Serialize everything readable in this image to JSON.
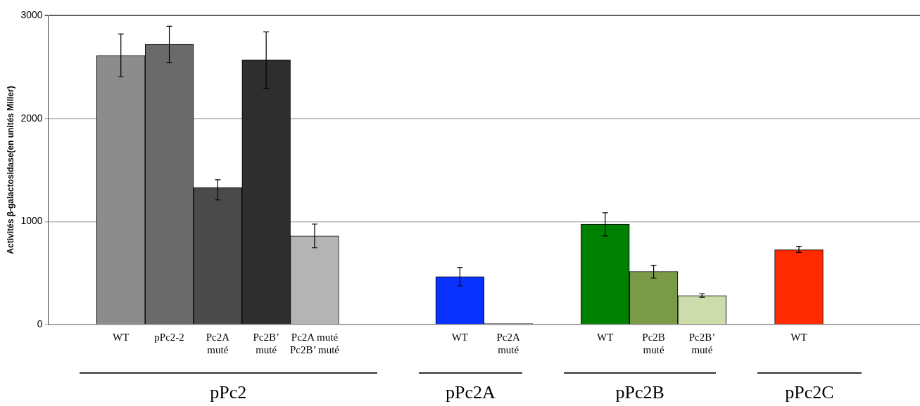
{
  "chart_data": {
    "type": "bar",
    "ylabel": "Activités β-galactosidase(en unités Miller)",
    "categories": [
      null,
      "WT",
      "pPc2-2",
      "Pc2A\nmuté",
      "Pc2B’\nmuté",
      "Pc2A muté\nPc2B’ muté",
      null,
      null,
      "WT",
      "Pc2A\nmuté",
      null,
      "WT",
      "Pc2B\nmuté",
      "Pc2B’\nmuté",
      null,
      "WT",
      null,
      null
    ],
    "values": [
      null,
      2610,
      2720,
      1330,
      2570,
      860,
      null,
      null,
      465,
      10,
      null,
      975,
      515,
      280,
      null,
      725,
      null,
      null
    ],
    "colors": [
      "#8c8c8c",
      "#8c8c8c",
      "#6a6a6a",
      "#4a4a4a",
      "#2e2e2e",
      "#b4b4b4",
      "#8c8c8c",
      "#8c8c8c",
      "#0a32ff",
      "#bdbdbd",
      "#8c8c8c",
      "#008000",
      "#7a9a48",
      "#ccdcaa",
      "#8c8c8c",
      "#ff2a00",
      "#8c8c8c",
      "#8c8c8c"
    ],
    "errors": [
      null,
      [
        2405,
        2820
      ],
      [
        2540,
        2895
      ],
      [
        1210,
        1405
      ],
      [
        2290,
        2840
      ],
      [
        745,
        975
      ],
      null,
      null,
      [
        375,
        555
      ],
      null,
      null,
      [
        860,
        1085
      ],
      [
        450,
        575
      ],
      [
        265,
        300
      ],
      null,
      [
        700,
        760
      ],
      null,
      null
    ],
    "ylim": [
      0,
      3000
    ],
    "yticks": [
      0,
      1000,
      2000,
      3000
    ],
    "grid": "y",
    "legend": false,
    "annotations": [
      "pPc2",
      "pPc2A",
      "pPc2B",
      "pPc2C"
    ]
  }
}
